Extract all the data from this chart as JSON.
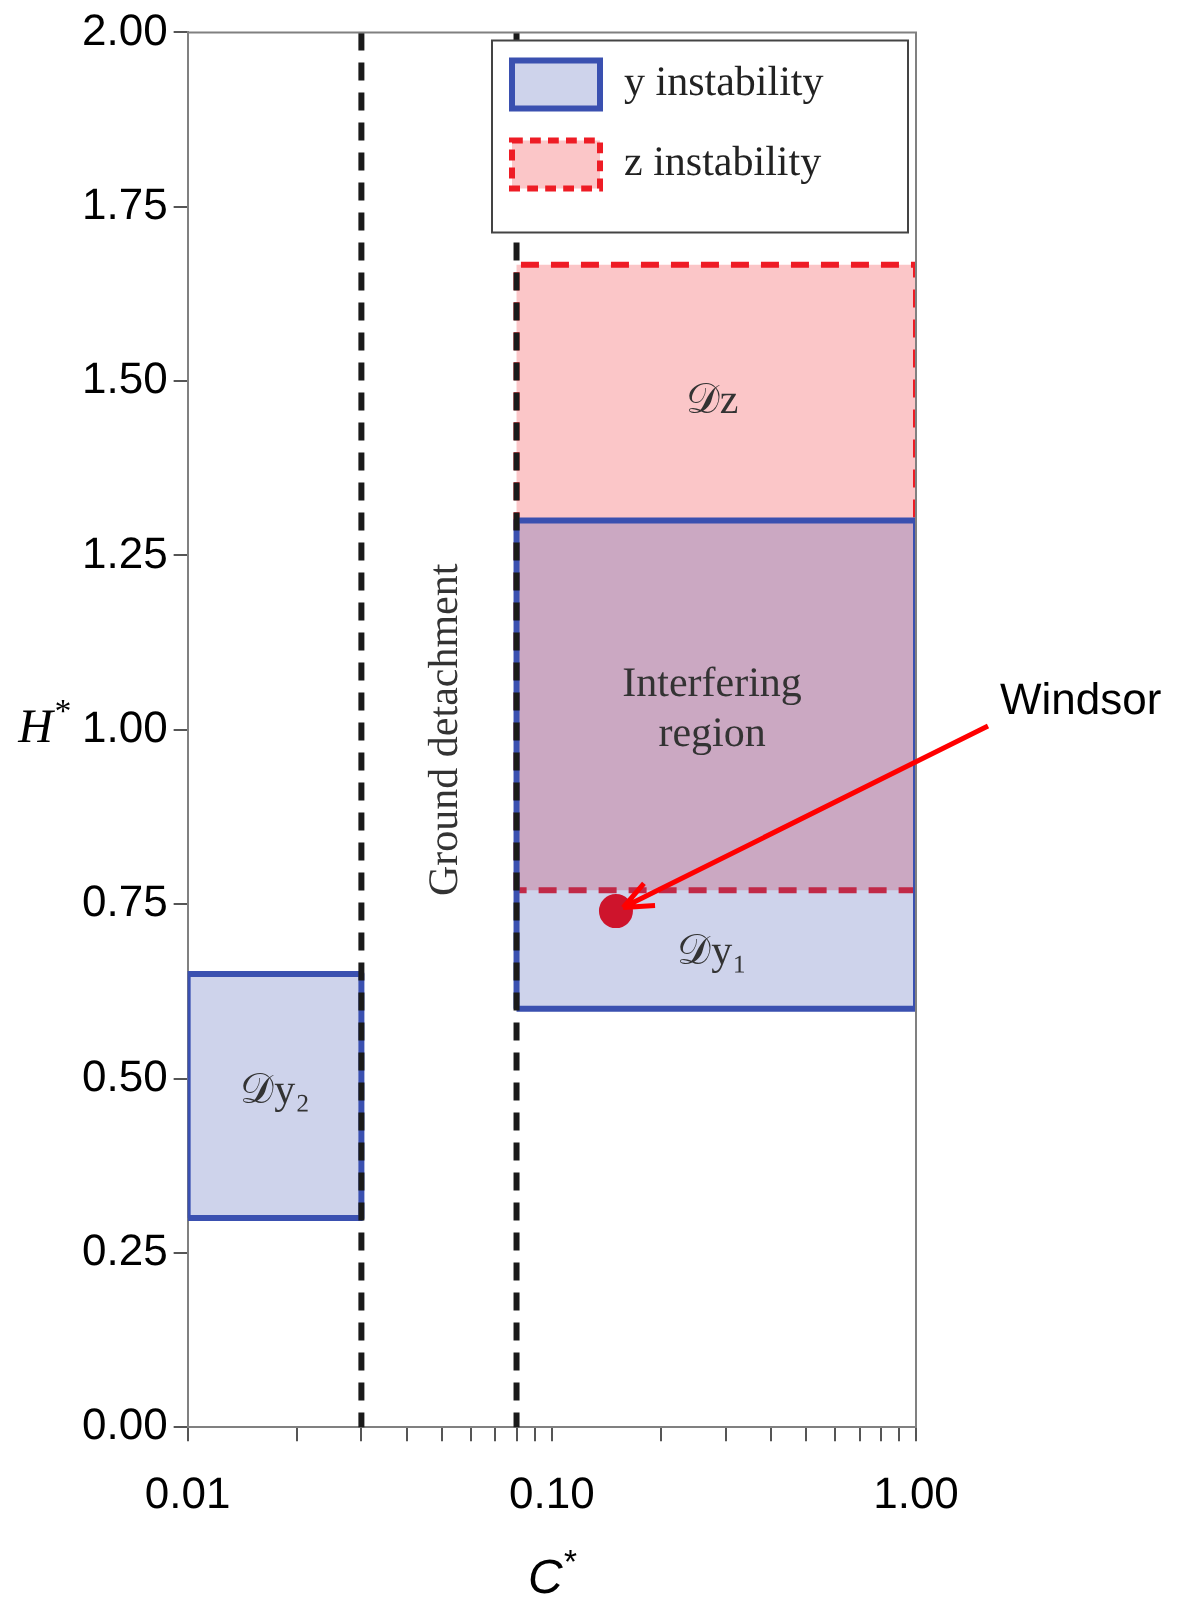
{
  "chart_data": {
    "type": "area",
    "xlabel": "C$^{*}$",
    "ylabel": "H$^{*}$",
    "log": "x",
    "grid": false,
    "legend": "top right",
    "xlim": [
      0.01,
      1
    ],
    "xticks": [
      {
        "value": 0.01,
        "label": "0.01"
      },
      {
        "value": 0.02,
        "label": null
      },
      {
        "value": 0.03,
        "label": null
      },
      {
        "value": 0.04,
        "label": null
      },
      {
        "value": 0.05,
        "label": null
      },
      {
        "value": 0.06,
        "label": null
      },
      {
        "value": 0.07,
        "label": null
      },
      {
        "value": 0.08,
        "label": null
      },
      {
        "value": 0.09,
        "label": null
      },
      {
        "value": 0.1,
        "label": "0.10"
      },
      {
        "value": 0.2,
        "label": null
      },
      {
        "value": 0.3,
        "label": null
      },
      {
        "value": 0.4,
        "label": null
      },
      {
        "value": 0.5,
        "label": null
      },
      {
        "value": 0.6,
        "label": null
      },
      {
        "value": 0.7,
        "label": null
      },
      {
        "value": 0.8,
        "label": null
      },
      {
        "value": 0.9,
        "label": null
      },
      {
        "value": 1,
        "label": "1.00"
      }
    ],
    "ylim": [
      0,
      2
    ],
    "yticks": [
      {
        "value": 0,
        "label": "0.00"
      },
      {
        "value": 0.25,
        "label": "0.25"
      },
      {
        "value": 0.5,
        "label": "0.50"
      },
      {
        "value": 0.75,
        "label": "0.75"
      },
      {
        "value": 1,
        "label": "1.00"
      },
      {
        "value": 1.25,
        "label": "1.25"
      },
      {
        "value": 1.5,
        "label": "1.50"
      },
      {
        "value": 1.75,
        "label": "1.75"
      },
      {
        "value": 2,
        "label": "2.00"
      }
    ],
    "series": [
      {
        "name": "y instability",
        "color": "#3a50b0",
        "line_style": "solid",
        "marker": "none",
        "x": [
          0.01,
          0.01,
          0.03,
          0.03,
          0.01
        ],
        "values": [
          0.3,
          0.65,
          0.65,
          0.3,
          0.3
        ]
      },
      {
        "color": "#3a50b0",
        "line_style": "solid",
        "marker": "none",
        "x": [
          0.08,
          0.08,
          1,
          1,
          0.08
        ],
        "values": [
          0.6,
          1.3,
          1.3,
          0.6,
          0.6
        ]
      },
      {
        "name": "z instability",
        "color": "#ee1c25",
        "line_style": "dashed",
        "marker": "none",
        "x": [
          0.08,
          0.08,
          1,
          1,
          0.08
        ],
        "values": [
          0.77,
          1.667,
          1.667,
          0.77,
          0.77
        ]
      },
      {
        "name": "Windsor",
        "type": "scatter",
        "color": "#ff0000",
        "marker": "circle",
        "x": [
          0.15
        ],
        "values": [
          0.74
        ]
      }
    ],
    "ref_lines": [
      {
        "axis": "x",
        "value": 0.03,
        "color": "#1a1a1a",
        "line_style": "dashed"
      },
      {
        "axis": "x",
        "value": 0.08,
        "color": "#1a1a1a",
        "line_style": "dashed"
      }
    ],
    "annotations": [
      "𝒟y₂",
      "𝒟y₁",
      "𝒟z",
      "Interfering region",
      "Ground detachment"
    ]
  }
}
